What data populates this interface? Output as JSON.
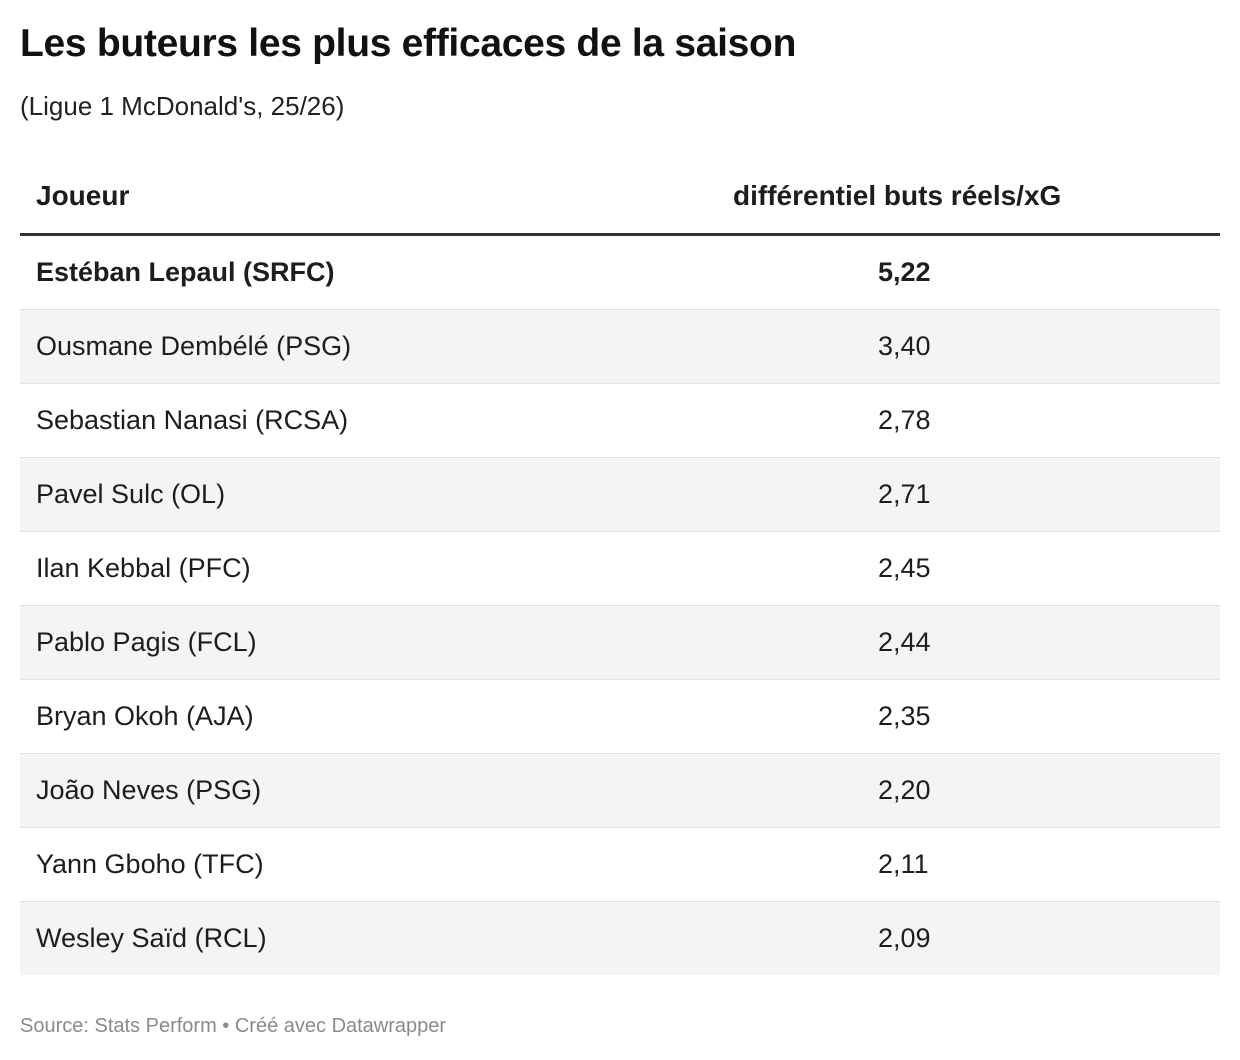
{
  "header": {
    "title": "Les buteurs les plus efficaces de la saison",
    "subtitle": "(Ligue 1 McDonald's, 25/26)"
  },
  "footer": {
    "source": "Source: Stats Perform • Créé avec Datawrapper"
  },
  "chart_data": {
    "type": "table",
    "title": "Les buteurs les plus efficaces de la saison",
    "subtitle": "(Ligue 1 McDonald's, 25/26)",
    "columns": [
      "Joueur",
      "différentiel buts réels/xG"
    ],
    "rows": [
      {
        "player": "Estéban Lepaul (SRFC)",
        "value": "5,22",
        "highlight": true
      },
      {
        "player": "Ousmane Dembélé (PSG)",
        "value": "3,40"
      },
      {
        "player": "Sebastian Nanasi (RCSA)",
        "value": "2,78"
      },
      {
        "player": "Pavel Sulc (OL)",
        "value": "2,71"
      },
      {
        "player": "Ilan Kebbal (PFC)",
        "value": "2,45"
      },
      {
        "player": "Pablo Pagis (FCL)",
        "value": "2,44"
      },
      {
        "player": "Bryan Okoh (AJA)",
        "value": "2,35"
      },
      {
        "player": "João Neves (PSG)",
        "value": "2,20"
      },
      {
        "player": "Yann Gboho (TFC)",
        "value": "2,11"
      },
      {
        "player": "Wesley Saïd (RCL)",
        "value": "2,09"
      }
    ]
  }
}
